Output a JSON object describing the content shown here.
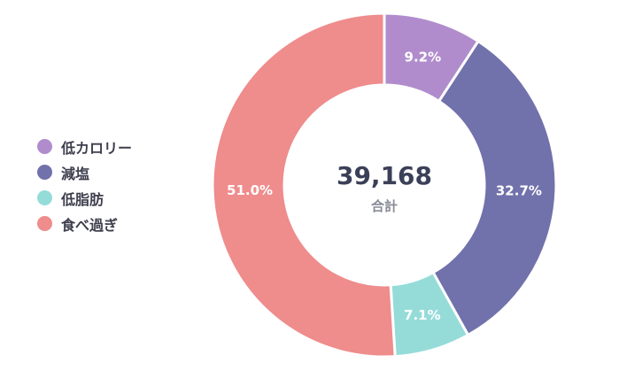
{
  "chart_data": {
    "type": "pie",
    "categories": [
      "低カロリー",
      "減塩",
      "低脂肪",
      "食べ過ぎ"
    ],
    "values": [
      9.2,
      32.7,
      7.1,
      51.0
    ],
    "labels": [
      "9.2%",
      "32.7%",
      "7.1%",
      "51.0%"
    ],
    "colors": [
      "#b08ccd",
      "#7171ab",
      "#95dcd9",
      "#ef8c8c"
    ],
    "center": {
      "total": "39,168",
      "label": "合計"
    },
    "legend_position": "left"
  }
}
